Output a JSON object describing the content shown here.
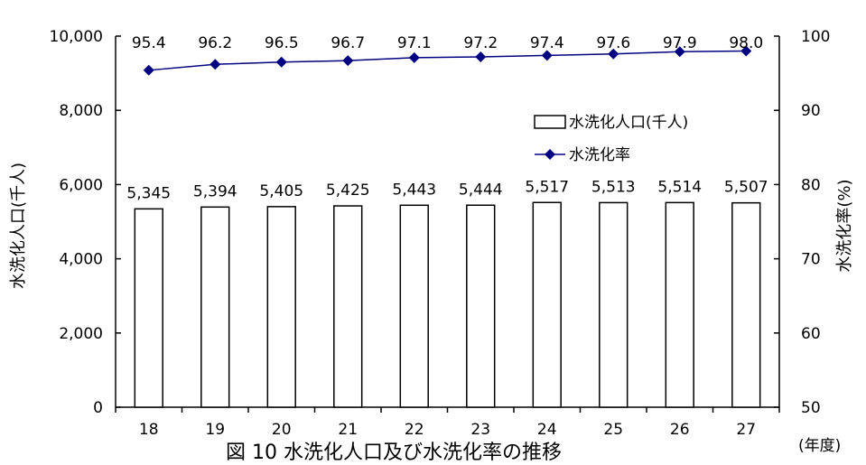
{
  "chart_data": {
    "type": "bar+line",
    "categories": [
      "18",
      "19",
      "20",
      "21",
      "22",
      "23",
      "24",
      "25",
      "26",
      "27"
    ],
    "series": [
      {
        "name": "水洗化人口(千人)",
        "type": "bar",
        "axis": "left",
        "values": [
          5345,
          5394,
          5405,
          5425,
          5443,
          5444,
          5517,
          5513,
          5514,
          5507
        ],
        "labels": [
          "5,345",
          "5,394",
          "5,405",
          "5,425",
          "5,443",
          "5,444",
          "5,517",
          "5,513",
          "5,514",
          "5,507"
        ],
        "fill": "#ffffff",
        "stroke": "#000000"
      },
      {
        "name": "水洗化率",
        "type": "line",
        "axis": "right",
        "values": [
          95.4,
          96.2,
          96.5,
          96.7,
          97.1,
          97.2,
          97.4,
          97.6,
          97.9,
          98.0
        ],
        "labels": [
          "95.4",
          "96.2",
          "96.5",
          "96.7",
          "97.1",
          "97.2",
          "97.4",
          "97.6",
          "97.9",
          "98.0"
        ],
        "color": "#000080",
        "marker": "diamond"
      }
    ],
    "y_left": {
      "label": "水洗化人口(千人)",
      "ylim": [
        0,
        10000
      ],
      "ticks": [
        0,
        2000,
        4000,
        6000,
        8000,
        10000
      ],
      "tick_labels": [
        "0",
        "2,000",
        "4,000",
        "6,000",
        "8,000",
        "10,000"
      ]
    },
    "y_right": {
      "label": "水洗化率(%)",
      "ylim": [
        50,
        100
      ],
      "ticks": [
        50,
        60,
        70,
        80,
        90,
        100
      ],
      "tick_labels": [
        "50",
        "60",
        "70",
        "80",
        "90",
        "100"
      ]
    },
    "x_unit": "(年度)",
    "caption": "図 10 水洗化人口及び水洗化率の推移",
    "legend_position": "top-right",
    "grid": false
  }
}
